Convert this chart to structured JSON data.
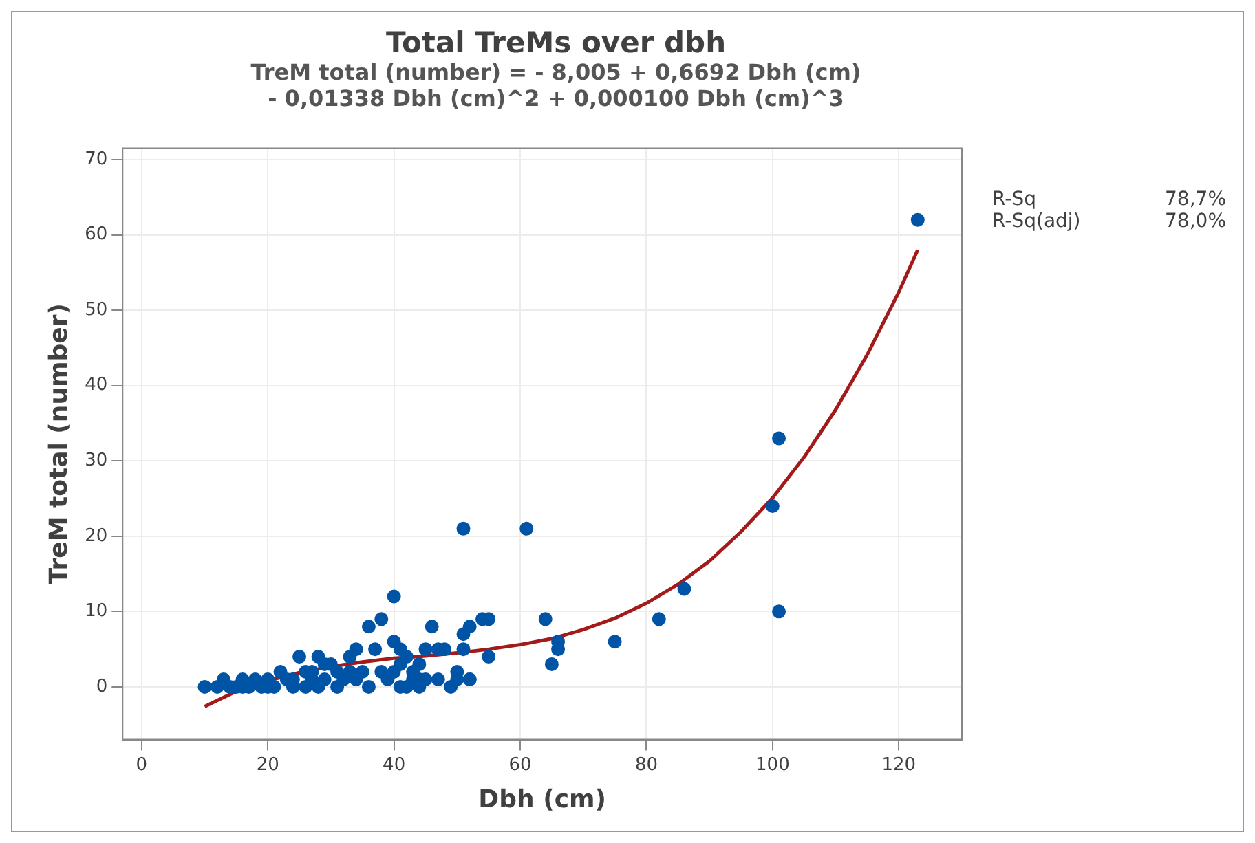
{
  "chart_data": {
    "type": "scatter",
    "title": "Total TreMs over dbh",
    "subtitle": "TreM total (number) = - 8,005 + 0,6692 Dbh (cm)\n- 0,01338 Dbh (cm)^2 + 0,000100 Dbh (cm)^3",
    "xlabel": "Dbh (cm)",
    "ylabel": "TreM total (number)",
    "annotations": [
      "R-Sq 78,7%",
      "R-Sq(adj) 78,0%"
    ],
    "xlim": [
      -3,
      130
    ],
    "xticks": [
      0,
      20,
      40,
      60,
      80,
      100,
      120
    ],
    "ylim": [
      -7,
      71.5
    ],
    "yticks": [
      0,
      10,
      20,
      30,
      40,
      50,
      60,
      70
    ],
    "grid": true,
    "legend": false,
    "series": [
      {
        "type": "scatter",
        "marker": "circle",
        "color": "#0054a6",
        "x": [
          123,
          101,
          100,
          101,
          86,
          82,
          75,
          66,
          66,
          65,
          64,
          61,
          51,
          55,
          54,
          55,
          52,
          51,
          51,
          50,
          52,
          47,
          46,
          45,
          44,
          43,
          42,
          41,
          40,
          40,
          41,
          38,
          36,
          37,
          34,
          35,
          40,
          42,
          45,
          47,
          44,
          30,
          28,
          25,
          26,
          22,
          20,
          18,
          16,
          15,
          12,
          10,
          14,
          17,
          19,
          21,
          23,
          24,
          26,
          27,
          28,
          29,
          31,
          32,
          33,
          34,
          36,
          38,
          39,
          43,
          29,
          31,
          24,
          27,
          49,
          50,
          52,
          44,
          41,
          20,
          13,
          16,
          48,
          33
        ],
        "values": [
          62,
          33,
          24,
          10,
          13,
          9,
          6,
          6,
          5,
          3,
          9,
          21,
          21,
          9,
          9,
          4,
          8,
          7,
          5,
          2,
          1,
          5,
          8,
          5,
          3,
          2,
          4,
          5,
          12,
          6,
          3,
          9,
          8,
          5,
          5,
          2,
          2,
          0,
          1,
          1,
          1,
          3,
          4,
          4,
          2,
          2,
          1,
          1,
          1,
          0,
          0,
          0,
          0,
          0,
          0,
          0,
          1,
          0,
          0,
          1,
          0,
          1,
          0,
          1,
          2,
          1,
          0,
          2,
          1,
          1,
          3,
          2,
          1,
          2,
          0,
          1,
          1,
          0,
          0,
          0,
          1,
          0,
          5,
          4
        ]
      },
      {
        "type": "line",
        "marker": "none",
        "line_style": "solid",
        "color": "#a31a1a",
        "x": [
          10,
          15,
          20,
          25,
          30,
          35,
          40,
          45,
          50,
          55,
          60,
          65,
          70,
          75,
          80,
          85,
          90,
          95,
          100,
          105,
          110,
          115,
          120,
          123
        ],
        "values": [
          -2.6,
          -0.6,
          0.8,
          1.9,
          2.7,
          3.3,
          3.8,
          4.1,
          4.5,
          5,
          5.6,
          6.4,
          7.6,
          9.1,
          11.1,
          13.6,
          16.7,
          20.6,
          25.1,
          30.5,
          36.8,
          44.1,
          52.4,
          58
        ]
      }
    ]
  }
}
